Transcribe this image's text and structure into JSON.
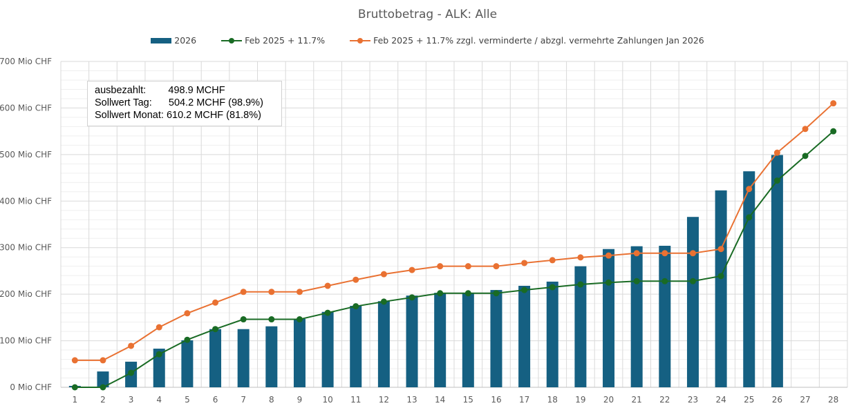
{
  "chart_data": {
    "type": "bar",
    "title": "Bruttobetrag - ALK: Alle",
    "categories": [
      "1",
      "2",
      "3",
      "4",
      "5",
      "6",
      "7",
      "8",
      "9",
      "10",
      "11",
      "12",
      "13",
      "14",
      "15",
      "16",
      "17",
      "18",
      "19",
      "20",
      "21",
      "22",
      "23",
      "24",
      "25",
      "26",
      "27",
      "28"
    ],
    "ylim": [
      0,
      700
    ],
    "yticks": [
      0,
      100,
      200,
      300,
      400,
      500,
      600,
      700
    ],
    "ytick_suffix": " Mio CHF",
    "grid": true,
    "legend_position": "top",
    "series": [
      {
        "name": "2026",
        "type": "bar",
        "color": "#156082",
        "values": [
          3,
          34,
          55,
          83,
          101,
          125,
          125,
          131,
          147,
          162,
          175,
          185,
          197,
          203,
          203,
          209,
          218,
          227,
          260,
          297,
          303,
          304,
          366,
          423,
          464,
          499,
          null,
          null
        ]
      },
      {
        "name": "Feb 2025 + 11.7%",
        "type": "line",
        "color": "#196B24",
        "values": [
          0,
          0,
          31,
          71,
          102,
          125,
          146,
          146,
          146,
          160,
          174,
          184,
          193,
          202,
          202,
          202,
          209,
          215,
          221,
          225,
          228,
          228,
          228,
          239,
          365,
          444,
          497,
          550
        ]
      },
      {
        "name": "Feb 2025 + 11.7% zzgl. verminderte / abzgl. vermehrte Zahlungen Jan 2026",
        "type": "line",
        "color": "#E97132",
        "values": [
          58,
          58,
          89,
          129,
          159,
          182,
          205,
          205,
          205,
          218,
          231,
          243,
          252,
          260,
          260,
          260,
          267,
          273,
          279,
          283,
          288,
          288,
          288,
          297,
          426,
          504,
          555,
          610
        ]
      }
    ],
    "annotation": [
      "ausbezahlt:        498.9 MCHF",
      "Sollwert Tag:      504.2 MCHF (98.9%)",
      "Sollwert Monat: 610.2 MCHF (81.8%)"
    ]
  }
}
